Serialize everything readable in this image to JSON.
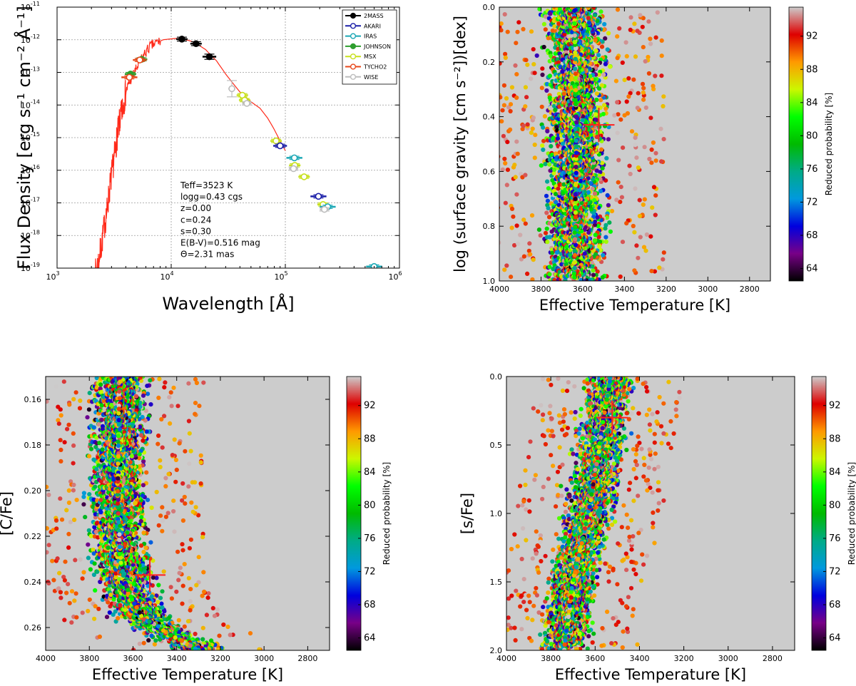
{
  "chart_data": [
    {
      "id": "sed",
      "type": "line",
      "xlabel": "Wavelength [Å]",
      "ylabel": "Flux Density [erg s⁻¹ cm⁻² Å⁻¹]",
      "xscale": "log",
      "yscale": "log",
      "xlim": [
        1000,
        1000000
      ],
      "ylim": [
        1e-19,
        1e-11
      ],
      "xtick_labels": [
        [
          "10",
          "3"
        ],
        [
          "10",
          "4"
        ],
        [
          "10",
          "5"
        ],
        [
          "10",
          "6"
        ]
      ],
      "ytick_labels": [
        [
          "10",
          "-11"
        ],
        [
          "10",
          "-12"
        ],
        [
          "10",
          "-13"
        ],
        [
          "10",
          "-14"
        ],
        [
          "10",
          "-15"
        ],
        [
          "10",
          "-16"
        ],
        [
          "10",
          "-17"
        ],
        [
          "10",
          "-18"
        ],
        [
          "10",
          "-19"
        ]
      ],
      "grid": true,
      "legend_position": "top-right",
      "legend": [
        {
          "name": "2MASS",
          "color": "#000000",
          "filled": true
        },
        {
          "name": "AKARI",
          "color": "#1b1fa8",
          "filled": false
        },
        {
          "name": "IRAS",
          "color": "#1aa7b5",
          "filled": false
        },
        {
          "name": "JOHNSON",
          "color": "#2e9e2e",
          "filled": true
        },
        {
          "name": "MSX",
          "color": "#c7e01b",
          "filled": false
        },
        {
          "name": "TYCHO2",
          "color": "#e8471a",
          "filled": false
        },
        {
          "name": "WISE",
          "color": "#bdbdbd",
          "filled": false
        }
      ],
      "model_color": "#ff2a1a",
      "model_curve": [
        [
          2150,
          -19.2
        ],
        [
          2300,
          -18.8
        ],
        [
          2450,
          -18.3
        ],
        [
          2600,
          -17.7
        ],
        [
          2750,
          -17.2
        ],
        [
          2900,
          -16.5
        ],
        [
          3050,
          -16.0
        ],
        [
          3200,
          -15.5
        ],
        [
          3350,
          -15.0
        ],
        [
          3500,
          -14.6
        ],
        [
          3650,
          -14.3
        ],
        [
          3800,
          -14.0
        ],
        [
          4000,
          -13.6
        ],
        [
          4300,
          -13.3
        ],
        [
          4700,
          -13.05
        ],
        [
          5200,
          -12.75
        ],
        [
          5800,
          -12.45
        ],
        [
          6500,
          -12.22
        ],
        [
          7500,
          -12.08
        ],
        [
          8500,
          -12.0
        ],
        [
          9500,
          -11.98
        ],
        [
          11000,
          -11.96
        ],
        [
          13000,
          -11.98
        ],
        [
          16000,
          -12.08
        ],
        [
          20000,
          -12.3
        ],
        [
          25000,
          -12.65
        ],
        [
          30000,
          -13.05
        ],
        [
          35000,
          -13.35
        ],
        [
          40000,
          -13.6
        ],
        [
          50000,
          -13.9
        ],
        [
          60000,
          -14.1
        ],
        [
          70000,
          -14.4
        ],
        [
          80000,
          -14.75
        ],
        [
          90000,
          -15.1
        ],
        [
          100000,
          -15.4
        ]
      ],
      "photometry": [
        {
          "survey": "2MASS",
          "x": 12400,
          "y": -11.98,
          "xerr": 0.05,
          "yerr": 0.06
        },
        {
          "survey": "2MASS",
          "x": 16500,
          "y": -12.12,
          "xerr": 0.05,
          "yerr": 0.06
        },
        {
          "survey": "2MASS",
          "x": 21600,
          "y": -12.52,
          "xerr": 0.06,
          "yerr": 0.08
        },
        {
          "survey": "JOHNSON",
          "x": 4400,
          "y": -13.05,
          "xerr": 0.05,
          "yerr": 0.05
        },
        {
          "survey": "JOHNSON",
          "x": 5500,
          "y": -12.6,
          "xerr": 0.05,
          "yerr": 0.05
        },
        {
          "survey": "TYCHO2",
          "x": 4300,
          "y": -13.15,
          "xerr": 0.07,
          "yerr": 0.05
        },
        {
          "survey": "TYCHO2",
          "x": 5300,
          "y": -12.62,
          "xerr": 0.06,
          "yerr": 0.05
        },
        {
          "survey": "WISE",
          "x": 34000,
          "y": -13.5,
          "xerr": 0.03,
          "yerr": 0.25
        },
        {
          "survey": "MSX",
          "x": 42000,
          "y": -13.7,
          "xerr": 0.05,
          "yerr": 0.05
        },
        {
          "survey": "MSX",
          "x": 44000,
          "y": -13.85,
          "xerr": 0.05,
          "yerr": 0.05
        },
        {
          "survey": "WISE",
          "x": 46000,
          "y": -13.95,
          "xerr": 0.04,
          "yerr": 0.05
        },
        {
          "survey": "MSX",
          "x": 83000,
          "y": -15.1,
          "xerr": 0.05,
          "yerr": 0.05
        },
        {
          "survey": "AKARI",
          "x": 90000,
          "y": -15.25,
          "xerr": 0.06,
          "yerr": 0.05
        },
        {
          "survey": "IRAS",
          "x": 120000,
          "y": -15.62,
          "xerr": 0.07,
          "yerr": 0.05
        },
        {
          "survey": "MSX",
          "x": 121000,
          "y": -15.85,
          "xerr": 0.05,
          "yerr": 0.05
        },
        {
          "survey": "WISE",
          "x": 118000,
          "y": -15.95,
          "xerr": 0.04,
          "yerr": 0.05
        },
        {
          "survey": "MSX",
          "x": 146000,
          "y": -16.2,
          "xerr": 0.05,
          "yerr": 0.05
        },
        {
          "survey": "AKARI",
          "x": 195000,
          "y": -16.8,
          "xerr": 0.07,
          "yerr": 0.05
        },
        {
          "survey": "MSX",
          "x": 214000,
          "y": -17.05,
          "xerr": 0.05,
          "yerr": 0.05
        },
        {
          "survey": "IRAS",
          "x": 235000,
          "y": -17.12,
          "xerr": 0.07,
          "yerr": 0.05
        },
        {
          "survey": "WISE",
          "x": 220000,
          "y": -17.2,
          "xerr": 0.04,
          "yerr": 0.05
        },
        {
          "survey": "IRAS",
          "x": 600000,
          "y": -18.95,
          "xerr": 0.07,
          "yerr": 0.05
        }
      ],
      "annotation_lines": [
        "Teff=3523 K",
        "logg=0.43 cgs",
        "z=0.00",
        "c=0.24",
        "s=0.30",
        "E(B-V)=0.516 mag",
        "Θ=2.31 mas"
      ]
    },
    {
      "id": "logg",
      "type": "scatter",
      "xlabel": "Effective Temperature [K]",
      "ylabel": "log (surface gravity [cm s⁻²])[dex]",
      "xlim": [
        4000,
        2700
      ],
      "ylim": [
        1.0,
        0.0
      ],
      "xticks": [
        4000,
        3800,
        3600,
        3400,
        3200,
        3000,
        2800
      ],
      "yticks": [
        0.0,
        0.2,
        0.4,
        0.6,
        0.8,
        1.0
      ],
      "xtick_labels": [
        "4000",
        "3800",
        "3600",
        "3400",
        "3200",
        "3000",
        "2800"
      ],
      "ytick_labels": [
        "0.0",
        "0.2",
        "0.4",
        "0.6",
        "0.8",
        "1.0"
      ],
      "best_fit": {
        "x": 3523,
        "y": 0.43
      },
      "band_center": [
        [
          0.0,
          3640
        ],
        [
          0.5,
          3630
        ],
        [
          1.0,
          3640
        ]
      ],
      "band_half_width": 195,
      "n_points": 3200,
      "background_color": "#cccccc",
      "colorbar": {
        "label": "Reduced probability [%]",
        "min": 62.5,
        "max": 95.5,
        "ticks": [
          "92",
          "88",
          "84",
          "80",
          "76",
          "72",
          "68",
          "64"
        ]
      }
    },
    {
      "id": "cfe",
      "type": "scatter",
      "xlabel": "Effective Temperature [K]",
      "ylabel": "[C/Fe]",
      "xlim": [
        4000,
        2700
      ],
      "ylim": [
        0.27,
        0.15
      ],
      "xticks": [
        4000,
        3800,
        3600,
        3400,
        3200,
        3000,
        2800
      ],
      "yticks": [
        0.16,
        0.18,
        0.2,
        0.22,
        0.24,
        0.26
      ],
      "xtick_labels": [
        "4000",
        "3800",
        "3600",
        "3400",
        "3200",
        "3000",
        "2800"
      ],
      "ytick_labels": [
        "0.16",
        "0.18",
        "0.20",
        "0.22",
        "0.24",
        "0.26"
      ],
      "best_fit": {
        "x": 3523,
        "y": 0.237
      },
      "band_center": [
        [
          0.15,
          3660
        ],
        [
          0.2,
          3670
        ],
        [
          0.23,
          3660
        ],
        [
          0.245,
          3620
        ],
        [
          0.255,
          3560
        ],
        [
          0.262,
          3450
        ],
        [
          0.27,
          3300
        ]
      ],
      "band_half_width": 175,
      "n_points": 3200,
      "background_color": "#cccccc",
      "colorbar": {
        "label": "Reduced probability [%]",
        "min": 62.5,
        "max": 95.5,
        "ticks": [
          "92",
          "88",
          "84",
          "80",
          "76",
          "72",
          "68",
          "64"
        ]
      }
    },
    {
      "id": "sfe",
      "type": "scatter",
      "xlabel": "Effective Temperature [K]",
      "ylabel": "[s/Fe]",
      "xlim": [
        4000,
        2700
      ],
      "ylim": [
        2.0,
        0.0
      ],
      "xticks": [
        4000,
        3800,
        3600,
        3400,
        3200,
        3000,
        2800
      ],
      "yticks": [
        0.0,
        0.5,
        1.0,
        1.5,
        2.0
      ],
      "xtick_labels": [
        "4000",
        "3800",
        "3600",
        "3400",
        "3200",
        "3000",
        "2800"
      ],
      "ytick_labels": [
        "0.0",
        "0.5",
        "1.0",
        "1.5",
        "2.0"
      ],
      "best_fit": {
        "x": 3523,
        "y": 0.3
      },
      "band_center": [
        [
          0.0,
          3530
        ],
        [
          0.5,
          3580
        ],
        [
          1.0,
          3630
        ],
        [
          1.5,
          3700
        ],
        [
          2.0,
          3740
        ]
      ],
      "band_half_width": 150,
      "n_points": 3200,
      "background_color": "#cccccc",
      "colorbar": {
        "label": "Reduced probability [%]",
        "min": 62.5,
        "max": 95.5,
        "ticks": [
          "92",
          "88",
          "84",
          "80",
          "76",
          "72",
          "68",
          "64"
        ]
      }
    }
  ]
}
